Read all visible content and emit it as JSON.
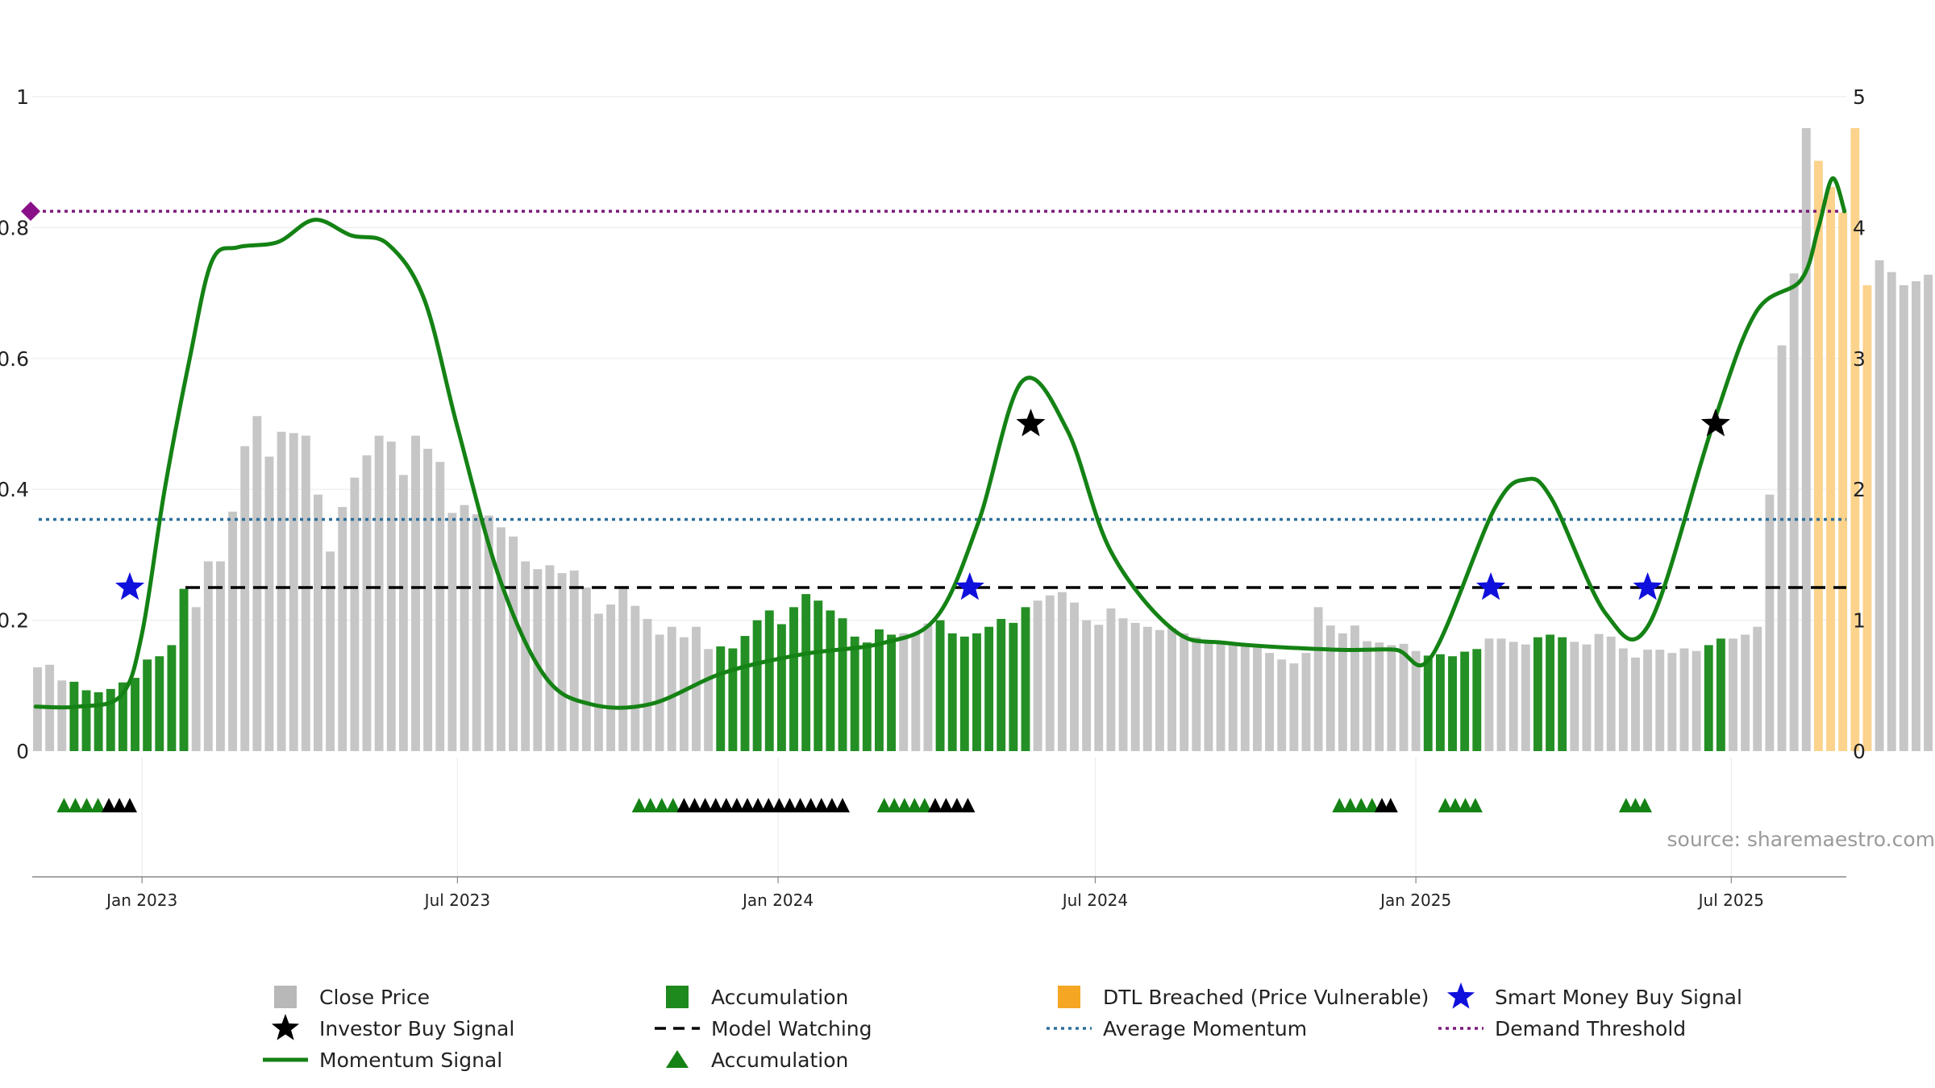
{
  "chart_data": {
    "type": "bar",
    "source": "source: sharemaestro.com",
    "xaxis": {
      "tick_labels": [
        "Jan 2023",
        "Jul 2023",
        "Jan 2024",
        "Jul 2024",
        "Jan 2025",
        "Jul 2025"
      ],
      "tick_dates": [
        "2023-01-01",
        "2023-07-01",
        "2024-01-01",
        "2024-07-01",
        "2025-01-01",
        "2025-07-01"
      ],
      "range": [
        "2022-10-30",
        "2025-09-05"
      ]
    },
    "yaxis_left": {
      "range": [
        0,
        1
      ],
      "tick_labels": [
        "0",
        "0.2",
        "0.4",
        "0.6",
        "0.8",
        "1"
      ],
      "tick_values": [
        0,
        0.2,
        0.4,
        0.6,
        0.8,
        1.0
      ],
      "grid": true
    },
    "yaxis_right": {
      "range": [
        0,
        5
      ],
      "tick_labels": [
        "0",
        "1",
        "2",
        "3",
        "4",
        "5"
      ],
      "tick_values": [
        0,
        1,
        2,
        3,
        4,
        5
      ]
    },
    "bars": {
      "start_date": "2022-11-02",
      "interval_days": 7,
      "values": [
        0.128,
        0.132,
        0.108,
        0.106,
        0.093,
        0.09,
        0.095,
        0.105,
        0.112,
        0.14,
        0.145,
        0.162,
        0.248,
        0.22,
        0.29,
        0.29,
        0.366,
        0.466,
        0.512,
        0.45,
        0.488,
        0.486,
        0.482,
        0.392,
        0.305,
        0.373,
        0.418,
        0.452,
        0.482,
        0.473,
        0.422,
        0.482,
        0.462,
        0.442,
        0.364,
        0.376,
        0.362,
        0.36,
        0.342,
        0.328,
        0.29,
        0.278,
        0.284,
        0.272,
        0.276,
        0.25,
        0.21,
        0.224,
        0.252,
        0.222,
        0.202,
        0.178,
        0.19,
        0.174,
        0.19,
        0.156,
        0.16,
        0.157,
        0.176,
        0.2,
        0.215,
        0.194,
        0.22,
        0.24,
        0.23,
        0.215,
        0.203,
        0.175,
        0.166,
        0.186,
        0.178,
        0.18,
        0.18,
        0.195,
        0.2,
        0.18,
        0.175,
        0.18,
        0.19,
        0.202,
        0.196,
        0.22,
        0.23,
        0.238,
        0.243,
        0.227,
        0.2,
        0.193,
        0.218,
        0.203,
        0.196,
        0.19,
        0.185,
        0.188,
        0.18,
        0.174,
        0.166,
        0.167,
        0.163,
        0.162,
        0.158,
        0.15,
        0.14,
        0.134,
        0.15,
        0.22,
        0.192,
        0.18,
        0.192,
        0.168,
        0.166,
        0.162,
        0.164,
        0.153,
        0.146,
        0.148,
        0.145,
        0.152,
        0.156,
        0.172,
        0.172,
        0.167,
        0.163,
        0.174,
        0.178,
        0.174,
        0.167,
        0.163,
        0.179,
        0.175,
        0.157,
        0.143,
        0.155,
        0.155,
        0.15,
        0.157,
        0.153,
        0.162,
        0.172,
        0.172,
        0.178,
        0.19,
        0.392,
        0.62,
        0.73,
        0.952,
        0.902,
        0.862,
        0.823,
        0.952,
        0.712,
        0.75,
        0.732,
        0.712,
        0.718,
        0.728
      ],
      "accumulation_weeks": [
        3,
        4,
        5,
        6,
        7,
        8,
        9,
        10,
        11,
        12,
        56,
        57,
        58,
        59,
        60,
        61,
        62,
        63,
        64,
        65,
        66,
        67,
        68,
        69,
        70,
        74,
        75,
        76,
        77,
        78,
        79,
        80,
        81,
        114,
        115,
        116,
        117,
        118,
        123,
        124,
        125,
        137,
        138
      ],
      "dtl_breached_weeks": [
        146,
        147,
        148,
        149,
        150
      ]
    },
    "momentum_signal": {
      "axis": "left",
      "points": [
        [
          "2022-11-01",
          0.068
        ],
        [
          "2022-11-25",
          0.068
        ],
        [
          "2022-12-20",
          0.085
        ],
        [
          "2023-01-01",
          0.18
        ],
        [
          "2023-01-14",
          0.4
        ],
        [
          "2023-01-28",
          0.595
        ],
        [
          "2023-02-10",
          0.748
        ],
        [
          "2023-02-25",
          0.77
        ],
        [
          "2023-03-20",
          0.778
        ],
        [
          "2023-04-10",
          0.812
        ],
        [
          "2023-05-01",
          0.788
        ],
        [
          "2023-05-22",
          0.775
        ],
        [
          "2023-06-12",
          0.69
        ],
        [
          "2023-07-01",
          0.495
        ],
        [
          "2023-07-25",
          0.265
        ],
        [
          "2023-08-20",
          0.115
        ],
        [
          "2023-09-15",
          0.072
        ],
        [
          "2023-10-20",
          0.072
        ],
        [
          "2023-12-01",
          0.12
        ],
        [
          "2024-01-15",
          0.148
        ],
        [
          "2024-03-01",
          0.165
        ],
        [
          "2024-04-01",
          0.205
        ],
        [
          "2024-04-25",
          0.35
        ],
        [
          "2024-05-20",
          0.565
        ],
        [
          "2024-06-15",
          0.49
        ],
        [
          "2024-07-10",
          0.305
        ],
        [
          "2024-08-15",
          0.185
        ],
        [
          "2024-09-15",
          0.165
        ],
        [
          "2024-11-15",
          0.155
        ],
        [
          "2024-12-20",
          0.155
        ],
        [
          "2025-01-10",
          0.145
        ],
        [
          "2025-02-15",
          0.37
        ],
        [
          "2025-03-05",
          0.415
        ],
        [
          "2025-03-20",
          0.385
        ],
        [
          "2025-04-20",
          0.21
        ],
        [
          "2025-05-15",
          0.195
        ],
        [
          "2025-06-20",
          0.495
        ],
        [
          "2025-07-15",
          0.67
        ],
        [
          "2025-08-10",
          0.72
        ],
        [
          "2025-08-20",
          0.8
        ],
        [
          "2025-08-28",
          0.875
        ],
        [
          "2025-09-04",
          0.825
        ]
      ]
    },
    "investor_buy_signals": [
      {
        "date": "2024-05-25",
        "value": 0.5
      },
      {
        "date": "2025-06-22",
        "value": 0.5
      }
    ],
    "smart_money_buy_signals": [
      {
        "date": "2022-12-25",
        "value": 0.25
      },
      {
        "date": "2024-04-20",
        "value": 0.25
      },
      {
        "date": "2025-02-13",
        "value": 0.25
      },
      {
        "date": "2025-05-14",
        "value": 0.25
      }
    ],
    "model_watching_level": 0.25,
    "average_momentum_level": 0.354,
    "demand_threshold_level": 0.825,
    "accumulation_markers": [
      {
        "from": "2022-11-14",
        "to": "2022-12-10",
        "color": "green"
      },
      {
        "from": "2022-12-10",
        "to": "2022-12-28",
        "color": "black"
      },
      {
        "from": "2023-10-10",
        "to": "2023-11-05",
        "color": "green"
      },
      {
        "from": "2023-11-05",
        "to": "2024-02-10",
        "color": "black"
      },
      {
        "from": "2024-02-28",
        "to": "2024-03-28",
        "color": "green"
      },
      {
        "from": "2024-03-28",
        "to": "2024-04-22",
        "color": "black"
      },
      {
        "from": "2024-11-15",
        "to": "2024-12-10",
        "color": "green"
      },
      {
        "from": "2024-12-10",
        "to": "2024-12-20",
        "color": "black"
      },
      {
        "from": "2025-01-15",
        "to": "2025-02-07",
        "color": "green"
      },
      {
        "from": "2025-04-29",
        "to": "2025-05-15",
        "color": "green"
      }
    ],
    "legend": [
      {
        "label": "Close Price",
        "kind": "square",
        "color": "#b8b8b8"
      },
      {
        "label": "Accumulation",
        "kind": "square",
        "color": "#1e8a1e"
      },
      {
        "label": "DTL Breached (Price Vulnerable)",
        "kind": "square",
        "color": "#f5a623"
      },
      {
        "label": "Smart Money Buy Signal",
        "kind": "star",
        "color": "#1010dd"
      },
      {
        "label": "Investor Buy Signal",
        "kind": "star",
        "color": "#000000"
      },
      {
        "label": "Model Watching",
        "kind": "dash",
        "color": "#000000"
      },
      {
        "label": "Average Momentum",
        "kind": "dot",
        "color": "#2f6f9a"
      },
      {
        "label": "Demand Threshold",
        "kind": "dot",
        "color": "#7b1a7b"
      },
      {
        "label": "Momentum Signal",
        "kind": "line",
        "color": "#148214"
      },
      {
        "label": "Accumulation",
        "kind": "triangle",
        "color": "#148214"
      }
    ],
    "colors": {
      "close_price": "#c6c6c6",
      "accumulation": "#248f24",
      "dtl_breached": "#fcd38c",
      "momentum": "#148214",
      "smart_money": "#1010dd",
      "investor": "#000000",
      "model_watching": "#000000",
      "average_momentum": "#2f6f9a",
      "demand_threshold": "#7b1a7b",
      "threshold_marker": "#8a108a",
      "grid": "#ececec",
      "axis": "#888888"
    }
  }
}
